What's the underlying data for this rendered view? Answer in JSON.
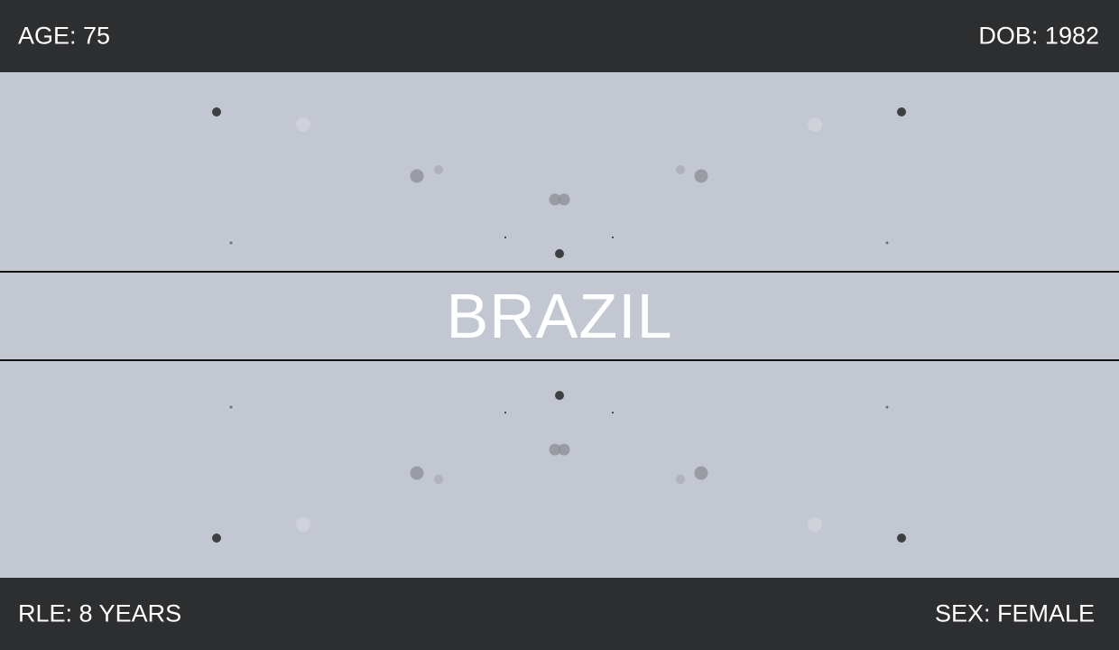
{
  "header": {
    "age": "AGE: 75",
    "dob": "DOB: 1982"
  },
  "footer": {
    "rle": "RLE: 8 YEARS",
    "sex": "SEX: FEMALE"
  },
  "main": {
    "country": "BRAZIL"
  },
  "colors": {
    "bar_background": "#2d2e30",
    "field_background": "#c2c7d1",
    "text": "#ffffff",
    "divider": "#111111"
  }
}
